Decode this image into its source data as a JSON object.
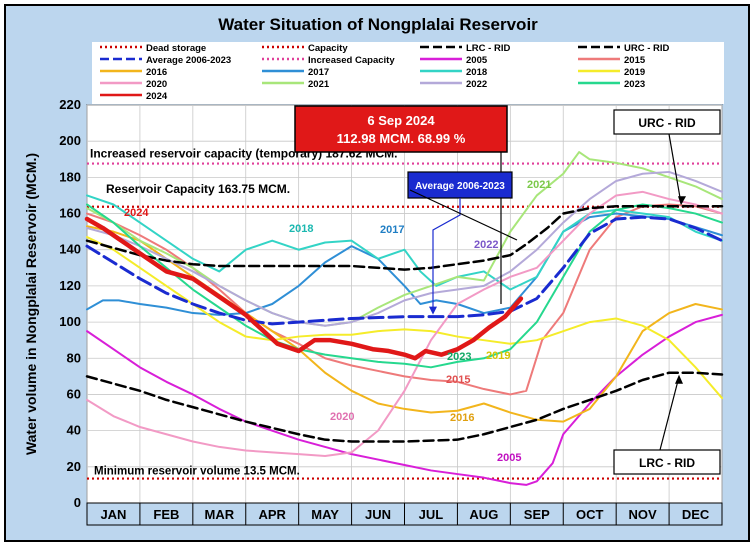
{
  "chart_data": {
    "type": "line",
    "title": "Water Situation of Nongplalai Reservoir",
    "ylabel": "Water volume in Nongplalai Reservoir (MCM.)",
    "xlabel": "",
    "ylim": [
      0,
      220
    ],
    "yticks": [
      0,
      20,
      40,
      60,
      80,
      100,
      120,
      140,
      160,
      180,
      200,
      220
    ],
    "months": [
      "JAN",
      "FEB",
      "MAR",
      "APR",
      "MAY",
      "JUN",
      "JUL",
      "AUG",
      "SEP",
      "OCT",
      "NOV",
      "DEC"
    ],
    "grid": true,
    "legend_position": "top",
    "reference_lines": [
      {
        "name": "Dead storage",
        "value": 13.5,
        "color": "#cc0000",
        "style": "dotted",
        "label": "Minimum reservoir volume 13.5 MCM."
      },
      {
        "name": "Capacity",
        "value": 163.75,
        "color": "#cc0000",
        "style": "dotted",
        "label": "Reservoir Capacity 163.75 MCM."
      },
      {
        "name": "Increased Capacity",
        "value": 187.62,
        "color": "#e0409a",
        "style": "dotted",
        "label": "Increased reservoir capacity (temporary) 187.62 MCM."
      }
    ],
    "legend": [
      {
        "name": "Dead storage",
        "color": "#cc0000",
        "style": "dotted"
      },
      {
        "name": "Capacity",
        "color": "#cc0000",
        "style": "dotted"
      },
      {
        "name": "LRC - RID",
        "color": "#000000",
        "style": "dashed"
      },
      {
        "name": "URC - RID",
        "color": "#000000",
        "style": "dashed"
      },
      {
        "name": "Average 2006-2023",
        "color": "#1a2bd0",
        "style": "dashed"
      },
      {
        "name": "Increased Capacity",
        "color": "#e0409a",
        "style": "dotted"
      },
      {
        "name": "2005",
        "color": "#d81fd8",
        "style": "solid"
      },
      {
        "name": "2015",
        "color": "#ee7a7a",
        "style": "solid"
      },
      {
        "name": "2016",
        "color": "#f2b51c",
        "style": "solid"
      },
      {
        "name": "2017",
        "color": "#2f8fd6",
        "style": "solid"
      },
      {
        "name": "2018",
        "color": "#33d4c6",
        "style": "solid"
      },
      {
        "name": "2019",
        "color": "#f5ec2a",
        "style": "solid"
      },
      {
        "name": "2020",
        "color": "#f29ac5",
        "style": "solid"
      },
      {
        "name": "2021",
        "color": "#a8e67a",
        "style": "solid"
      },
      {
        "name": "2022",
        "color": "#b4a9d9",
        "style": "solid"
      },
      {
        "name": "2023",
        "color": "#26d88e",
        "style": "solid"
      },
      {
        "name": "2024",
        "color": "#e01818",
        "style": "solid"
      }
    ],
    "series": [
      {
        "name": "URC - RID",
        "color": "#000000",
        "dash": "10,5",
        "width": 2.5,
        "x": [
          0,
          0.5,
          1,
          1.5,
          2,
          2.5,
          3,
          4,
          5,
          6,
          6.5,
          7,
          7.5,
          8,
          8.3,
          8.7,
          9,
          9.5,
          10,
          11,
          12
        ],
        "y": [
          145,
          141,
          137,
          134,
          132,
          131,
          131,
          131,
          131,
          129,
          130,
          132,
          134,
          137,
          143,
          152,
          160,
          163,
          164,
          164,
          164
        ]
      },
      {
        "name": "LRC - RID",
        "color": "#000000",
        "dash": "10,5",
        "width": 2.5,
        "x": [
          0,
          0.5,
          1,
          1.5,
          2,
          3,
          4,
          4.5,
          5,
          6,
          7,
          7.5,
          8,
          8.5,
          9,
          9.5,
          10,
          10.5,
          11,
          11.5,
          12
        ],
        "y": [
          70,
          66,
          62,
          57,
          53,
          45,
          38,
          35,
          34,
          34,
          35,
          38,
          42,
          46,
          52,
          57,
          62,
          68,
          72,
          72,
          71
        ]
      },
      {
        "name": "Average 2006-2023",
        "color": "#1a2bd0",
        "dash": "14,6",
        "width": 3,
        "x": [
          0,
          0.5,
          1,
          1.5,
          2,
          2.5,
          3,
          3.5,
          4,
          5,
          6,
          6.5,
          7,
          7.5,
          8,
          8.5,
          9,
          9.5,
          10,
          10.5,
          11,
          11.5,
          12
        ],
        "y": [
          142,
          133,
          124,
          116,
          110,
          105,
          101,
          99,
          100,
          102,
          103,
          103,
          103,
          104,
          106,
          113,
          130,
          149,
          157,
          158,
          157,
          152,
          145
        ]
      },
      {
        "name": "2005",
        "color": "#d81fd8",
        "width": 2,
        "x": [
          0,
          0.5,
          1,
          1.5,
          2,
          2.5,
          3,
          3.5,
          4,
          4.5,
          5,
          5.5,
          6,
          6.5,
          7,
          7.5,
          8,
          8.3,
          8.5,
          8.8,
          9,
          9.5,
          10,
          10.5,
          11,
          11.5,
          12
        ],
        "y": [
          95,
          85,
          75,
          67,
          60,
          52,
          45,
          40,
          35,
          31,
          27,
          24,
          21,
          18,
          16,
          14,
          11,
          10,
          12,
          22,
          38,
          55,
          70,
          82,
          92,
          100,
          104
        ]
      },
      {
        "name": "2015",
        "color": "#ee7a7a",
        "width": 2,
        "x": [
          0,
          0.5,
          1,
          1.5,
          2,
          2.5,
          3,
          3.5,
          4,
          4.5,
          5,
          5.5,
          6,
          6.5,
          7,
          7.5,
          8,
          8.3,
          8.6,
          9,
          9.5,
          10,
          10.5,
          11,
          11.5,
          12
        ],
        "y": [
          160,
          155,
          148,
          140,
          130,
          118,
          105,
          95,
          88,
          80,
          76,
          73,
          70,
          68,
          67,
          63,
          60,
          62,
          90,
          105,
          140,
          158,
          164,
          165,
          164,
          160
        ]
      },
      {
        "name": "2016",
        "color": "#f2b51c",
        "width": 2,
        "x": [
          0,
          0.5,
          1,
          1.5,
          2,
          2.5,
          3,
          3.5,
          4,
          4.5,
          5,
          5.5,
          6,
          6.5,
          7,
          7.5,
          8,
          8.5,
          9,
          9.5,
          10,
          10.5,
          11,
          11.5,
          12
        ],
        "y": [
          153,
          150,
          145,
          135,
          125,
          115,
          105,
          95,
          85,
          72,
          62,
          55,
          52,
          50,
          51,
          55,
          50,
          46,
          45,
          52,
          70,
          95,
          105,
          110,
          107
        ]
      },
      {
        "name": "2017",
        "color": "#2f8fd6",
        "width": 2,
        "x": [
          0,
          0.3,
          0.6,
          1,
          1.5,
          2,
          2.5,
          3,
          3.5,
          4,
          4.5,
          5,
          5.5,
          6,
          6.3,
          6.6,
          7,
          7.5,
          8,
          8.5,
          9,
          9.5,
          10,
          11,
          12
        ],
        "y": [
          107,
          112,
          112,
          110,
          108,
          105,
          104,
          105,
          110,
          120,
          133,
          142,
          135,
          120,
          110,
          112,
          110,
          105,
          108,
          125,
          150,
          158,
          160,
          157,
          148
        ]
      },
      {
        "name": "2018",
        "color": "#33d4c6",
        "width": 2,
        "x": [
          0,
          0.5,
          1,
          1.5,
          2,
          2.5,
          3,
          3.5,
          4,
          4.5,
          5,
          5.5,
          6,
          6.3,
          6.6,
          7,
          7.5,
          8,
          8.5,
          9,
          9.5,
          10,
          10.5,
          11,
          11.5,
          12
        ],
        "y": [
          170,
          165,
          155,
          145,
          135,
          128,
          140,
          145,
          140,
          144,
          145,
          135,
          140,
          128,
          120,
          125,
          128,
          118,
          125,
          150,
          160,
          162,
          160,
          158,
          150,
          145
        ]
      },
      {
        "name": "2019",
        "color": "#f5ec2a",
        "width": 2,
        "x": [
          0,
          0.5,
          1,
          1.5,
          2,
          2.5,
          3,
          3.5,
          4,
          4.5,
          5,
          5.5,
          6,
          6.5,
          7,
          7.5,
          8,
          8.5,
          9,
          9.5,
          10,
          10.5,
          11,
          11.5,
          12
        ],
        "y": [
          147,
          140,
          130,
          120,
          110,
          100,
          92,
          90,
          92,
          93,
          93,
          95,
          96,
          95,
          92,
          90,
          88,
          90,
          95,
          100,
          102,
          98,
          90,
          75,
          58
        ]
      },
      {
        "name": "2020",
        "color": "#f29ac5",
        "width": 2,
        "x": [
          0,
          0.5,
          1,
          1.5,
          2,
          2.5,
          3,
          3.5,
          4,
          4.5,
          5,
          5.5,
          6,
          6.5,
          7,
          7.5,
          8,
          8.5,
          9,
          9.5,
          10,
          10.5,
          11,
          11.5,
          12
        ],
        "y": [
          57,
          48,
          42,
          38,
          34,
          31,
          29,
          28,
          27,
          26,
          28,
          40,
          62,
          90,
          110,
          118,
          125,
          130,
          145,
          160,
          170,
          172,
          168,
          165,
          160
        ]
      },
      {
        "name": "2021",
        "color": "#a8e67a",
        "width": 2,
        "x": [
          0,
          0.5,
          1,
          1.5,
          2,
          2.5,
          3,
          3.5,
          4,
          4.5,
          5,
          5.5,
          6,
          6.5,
          7,
          7.5,
          8,
          8.5,
          9,
          9.3,
          9.5,
          10,
          10.5,
          11,
          11.5,
          12
        ],
        "y": [
          163,
          155,
          145,
          138,
          130,
          120,
          112,
          105,
          100,
          98,
          100,
          108,
          115,
          120,
          125,
          123,
          150,
          170,
          182,
          194,
          190,
          188,
          185,
          180,
          175,
          168
        ]
      },
      {
        "name": "2022",
        "color": "#b4a9d9",
        "width": 2,
        "x": [
          0,
          0.5,
          1,
          1.5,
          2,
          2.5,
          3,
          3.5,
          4,
          4.5,
          5,
          5.5,
          6,
          6.5,
          7,
          7.5,
          8,
          8.5,
          9,
          9.5,
          10,
          10.5,
          11,
          11.5,
          12
        ],
        "y": [
          152,
          148,
          142,
          135,
          128,
          120,
          112,
          105,
          100,
          98,
          100,
          105,
          112,
          116,
          118,
          120,
          128,
          140,
          155,
          168,
          178,
          182,
          183,
          178,
          172
        ]
      },
      {
        "name": "2023",
        "color": "#26d88e",
        "width": 2,
        "x": [
          0,
          0.5,
          1,
          1.5,
          2,
          2.5,
          3,
          3.5,
          4,
          4.5,
          5,
          5.5,
          6,
          6.5,
          7,
          7.5,
          8,
          8.5,
          9,
          9.5,
          10,
          10.5,
          11,
          11.5,
          12
        ],
        "y": [
          165,
          155,
          142,
          130,
          118,
          108,
          98,
          90,
          85,
          82,
          80,
          78,
          77,
          75,
          78,
          80,
          85,
          100,
          125,
          150,
          162,
          165,
          163,
          160,
          155
        ]
      },
      {
        "name": "2024",
        "color": "#e01818",
        "width": 4.5,
        "x": [
          0,
          0.3,
          0.6,
          1,
          1.5,
          2,
          2.3,
          2.6,
          3,
          3.3,
          3.6,
          4,
          4.3,
          4.6,
          5,
          5.4,
          5.7,
          6,
          6.2,
          6.4,
          6.7,
          7,
          7.3,
          7.6,
          7.9,
          8.2
        ],
        "y": [
          157,
          152,
          146,
          138,
          128,
          124,
          118,
          112,
          104,
          96,
          88,
          84,
          90,
          90,
          88,
          85,
          84,
          82,
          80,
          84,
          82,
          85,
          90,
          97,
          103,
          112.98
        ]
      }
    ],
    "annotations": [
      {
        "text": "6 Sep 2024",
        "kind": "callout"
      },
      {
        "text": "112.98 MCM. 68.99 %",
        "kind": "callout"
      },
      {
        "text": "URC - RID",
        "kind": "label-box"
      },
      {
        "text": "LRC - RID",
        "kind": "label-box"
      },
      {
        "text": "Average 2006-2023",
        "kind": "label-box"
      },
      {
        "text": "2024",
        "kind": "series-label",
        "color": "#e01818"
      },
      {
        "text": "2018",
        "kind": "series-label",
        "color": "#1bb8b0"
      },
      {
        "text": "2017",
        "kind": "series-label",
        "color": "#1f7ec4"
      },
      {
        "text": "2021",
        "kind": "series-label",
        "color": "#7bc84a"
      },
      {
        "text": "2022",
        "kind": "series-label",
        "color": "#7a56c8"
      },
      {
        "text": "2023",
        "kind": "series-label",
        "color": "#11a866"
      },
      {
        "text": "2019",
        "kind": "series-label",
        "color": "#d4c400"
      },
      {
        "text": "2015",
        "kind": "series-label",
        "color": "#e05050"
      },
      {
        "text": "2016",
        "kind": "series-label",
        "color": "#e0a010"
      },
      {
        "text": "2020",
        "kind": "series-label",
        "color": "#e070b0"
      },
      {
        "text": "2005",
        "kind": "series-label",
        "color": "#c010c0"
      }
    ]
  }
}
